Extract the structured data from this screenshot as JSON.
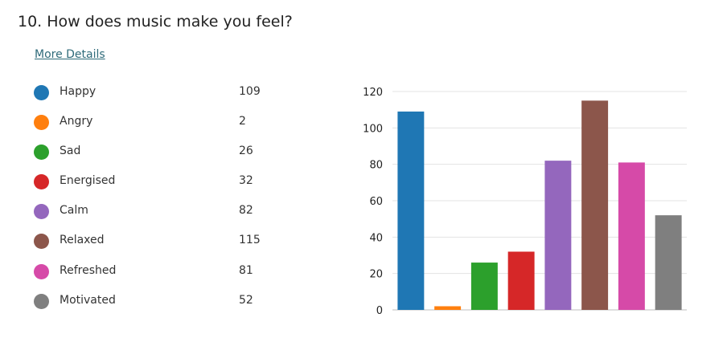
{
  "question": {
    "title": "10.  How does music make you feel?",
    "more_details_label": "More Details"
  },
  "legend": [
    {
      "label": "Happy",
      "count": "109",
      "color": "#1f77b4"
    },
    {
      "label": "Angry",
      "count": "2",
      "color": "#ff7f0e"
    },
    {
      "label": "Sad",
      "count": "26",
      "color": "#2ca02c"
    },
    {
      "label": "Energised",
      "count": "32",
      "color": "#d62728"
    },
    {
      "label": "Calm",
      "count": "82",
      "color": "#9467bd"
    },
    {
      "label": "Relaxed",
      "count": "115",
      "color": "#8c564b"
    },
    {
      "label": "Refreshed",
      "count": "81",
      "color": "#d64aa8"
    },
    {
      "label": "Motivated",
      "count": "52",
      "color": "#7f7f7f"
    }
  ],
  "chart_data": {
    "type": "bar",
    "categories": [
      "Happy",
      "Angry",
      "Sad",
      "Energised",
      "Calm",
      "Relaxed",
      "Refreshed",
      "Motivated"
    ],
    "values": [
      109,
      2,
      26,
      32,
      82,
      115,
      81,
      52
    ],
    "colors": [
      "#1f77b4",
      "#ff7f0e",
      "#2ca02c",
      "#d62728",
      "#9467bd",
      "#8c564b",
      "#d64aa8",
      "#7f7f7f"
    ],
    "ylim": [
      0,
      120
    ],
    "yticks": [
      "0",
      "20",
      "40",
      "60",
      "80",
      "100",
      "120"
    ],
    "grid": true,
    "title": "",
    "xlabel": "",
    "ylabel": ""
  }
}
